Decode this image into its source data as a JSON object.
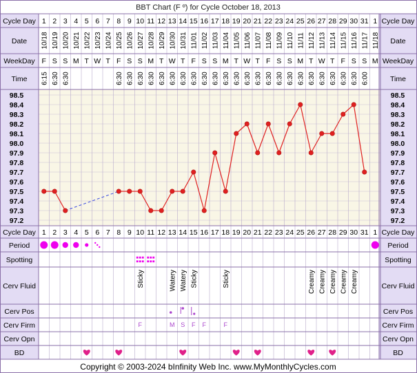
{
  "title": "BBT Chart (F º) for Cycle October 18, 2013",
  "footer": "Copyright © 2003-2024 bInfinity Web Inc.    www.MyMonthlyCycles.com",
  "row_labels": {
    "cycle_day": "Cycle Day",
    "date": "Date",
    "weekday": "WeekDay",
    "time": "Time",
    "period": "Period",
    "spotting": "Spotting",
    "cerv_fluid": "Cerv Fluid",
    "cerv_pos": "Cerv Pos",
    "cerv_firm": "Cerv Firm",
    "cerv_opn": "Cerv Opn",
    "bd": "BD"
  },
  "colors": {
    "grid_bg": "#f9f6e6",
    "label_bg": "#e3dcf4",
    "border": "#8a6fa8",
    "line": "#e02020",
    "dashed": "#4050e0",
    "marker": "#ee00ee",
    "heart": "#e0208a",
    "firm_text": "#aa44cc"
  },
  "days": [
    {
      "d": "1",
      "date": "10/18",
      "wd": "F",
      "time": "6:15"
    },
    {
      "d": "2",
      "date": "10/19",
      "wd": "S",
      "time": "6:30"
    },
    {
      "d": "3",
      "date": "10/20",
      "wd": "S",
      "time": "6:30"
    },
    {
      "d": "4",
      "date": "10/21",
      "wd": "M",
      "time": ""
    },
    {
      "d": "5",
      "date": "10/22",
      "wd": "T",
      "time": ""
    },
    {
      "d": "6",
      "date": "10/23",
      "wd": "W",
      "time": ""
    },
    {
      "d": "7",
      "date": "10/24",
      "wd": "T",
      "time": ""
    },
    {
      "d": "8",
      "date": "10/25",
      "wd": "F",
      "time": "6:30"
    },
    {
      "d": "9",
      "date": "10/26",
      "wd": "S",
      "time": "6:30"
    },
    {
      "d": "10",
      "date": "10/27",
      "wd": "S",
      "time": "6:30"
    },
    {
      "d": "11",
      "date": "10/28",
      "wd": "M",
      "time": "6:30"
    },
    {
      "d": "12",
      "date": "10/29",
      "wd": "T",
      "time": "6:30"
    },
    {
      "d": "13",
      "date": "10/30",
      "wd": "W",
      "time": "6:30"
    },
    {
      "d": "14",
      "date": "10/31",
      "wd": "T",
      "time": "6:30"
    },
    {
      "d": "15",
      "date": "11/01",
      "wd": "F",
      "time": "6:30"
    },
    {
      "d": "16",
      "date": "11/02",
      "wd": "S",
      "time": "6:30"
    },
    {
      "d": "17",
      "date": "11/03",
      "wd": "S",
      "time": "6:30"
    },
    {
      "d": "18",
      "date": "11/04",
      "wd": "M",
      "time": "6:30"
    },
    {
      "d": "19",
      "date": "11/05",
      "wd": "T",
      "time": "6:30"
    },
    {
      "d": "20",
      "date": "11/06",
      "wd": "W",
      "time": "6:30"
    },
    {
      "d": "21",
      "date": "11/07",
      "wd": "T",
      "time": "6:30"
    },
    {
      "d": "22",
      "date": "11/08",
      "wd": "F",
      "time": "6:30"
    },
    {
      "d": "23",
      "date": "11/09",
      "wd": "S",
      "time": "6:30"
    },
    {
      "d": "24",
      "date": "11/10",
      "wd": "S",
      "time": "6:30"
    },
    {
      "d": "25",
      "date": "11/11",
      "wd": "M",
      "time": "6:30"
    },
    {
      "d": "26",
      "date": "11/12",
      "wd": "T",
      "time": "6:30"
    },
    {
      "d": "27",
      "date": "11/13",
      "wd": "W",
      "time": "6:30"
    },
    {
      "d": "28",
      "date": "11/14",
      "wd": "T",
      "time": "6:30"
    },
    {
      "d": "29",
      "date": "11/15",
      "wd": "F",
      "time": "6:30"
    },
    {
      "d": "30",
      "date": "11/16",
      "wd": "S",
      "time": "6:30"
    },
    {
      "d": "31",
      "date": "11/17",
      "wd": "S",
      "time": "6:00"
    },
    {
      "d": "1",
      "date": "11/18",
      "wd": "M",
      "time": ""
    }
  ],
  "chart_data": {
    "type": "line",
    "title": "BBT Chart (F º) for Cycle October 18, 2013",
    "ylim": [
      97.2,
      98.5
    ],
    "y_ticks": [
      "98.5",
      "98.4",
      "98.3",
      "98.2",
      "98.1",
      "98.0",
      "97.9",
      "97.8",
      "97.7",
      "97.6",
      "97.5",
      "97.4",
      "97.3",
      "97.2"
    ],
    "x": [
      1,
      2,
      3,
      4,
      5,
      6,
      7,
      8,
      9,
      10,
      11,
      12,
      13,
      14,
      15,
      16,
      17,
      18,
      19,
      20,
      21,
      22,
      23,
      24,
      25,
      26,
      27,
      28,
      29,
      30,
      31,
      32
    ],
    "temps": [
      97.5,
      97.5,
      97.3,
      null,
      null,
      null,
      null,
      97.5,
      97.5,
      97.5,
      97.3,
      97.3,
      97.5,
      97.5,
      97.7,
      97.3,
      97.9,
      97.5,
      98.1,
      98.2,
      97.9,
      98.2,
      97.9,
      98.2,
      98.4,
      97.9,
      98.1,
      98.1,
      98.3,
      98.4,
      97.7,
      null
    ],
    "gap_dashed": [
      [
        3,
        8
      ]
    ]
  },
  "period": [
    {
      "col": 1,
      "size": "large"
    },
    {
      "col": 2,
      "size": "large"
    },
    {
      "col": 3,
      "size": "medium"
    },
    {
      "col": 4,
      "size": "medium"
    },
    {
      "col": 5,
      "size": "small"
    },
    {
      "col": 6,
      "size": "spotting"
    },
    {
      "col": 32,
      "size": "large"
    }
  ],
  "spotting": [
    10,
    11
  ],
  "cerv_fluid": [
    {
      "col": 10,
      "text": "Sticky"
    },
    {
      "col": 13,
      "text": "Watery"
    },
    {
      "col": 14,
      "text": "Watery"
    },
    {
      "col": 15,
      "text": "Sticky"
    },
    {
      "col": 18,
      "text": "Sticky"
    },
    {
      "col": 26,
      "text": "Creamy"
    },
    {
      "col": 27,
      "text": "Creamy"
    },
    {
      "col": 28,
      "text": "Creamy"
    },
    {
      "col": 29,
      "text": "Creamy"
    },
    {
      "col": 30,
      "text": "Creamy"
    }
  ],
  "cerv_pos": [
    {
      "col": 13,
      "level": "low"
    },
    {
      "col": 14,
      "level": "high"
    },
    {
      "col": 15,
      "level": "bar"
    }
  ],
  "cerv_firm": [
    {
      "col": 10,
      "text": "F"
    },
    {
      "col": 13,
      "text": "M"
    },
    {
      "col": 14,
      "text": "S"
    },
    {
      "col": 15,
      "text": "F"
    },
    {
      "col": 16,
      "text": "F"
    },
    {
      "col": 18,
      "text": "F"
    }
  ],
  "bd": [
    5,
    8,
    14,
    19,
    21,
    26,
    28
  ]
}
